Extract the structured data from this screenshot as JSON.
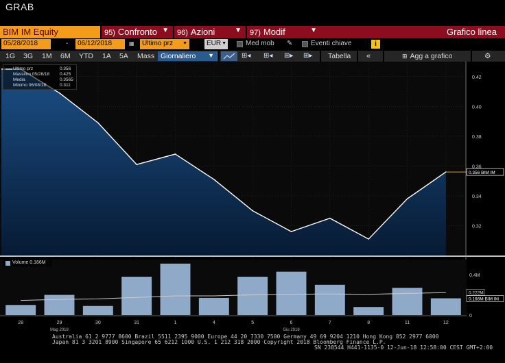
{
  "title": "GRAB",
  "row1": {
    "security": "BIM IM Equity",
    "menus": [
      {
        "num": "95)",
        "label": "Confronto"
      },
      {
        "num": "96)",
        "label": "Azioni"
      },
      {
        "num": "97)",
        "label": "Modif"
      }
    ],
    "chart_type": "Grafico linea"
  },
  "row2": {
    "start_date": "05/28/2018",
    "dash": "-",
    "end_date": "06/12/2018",
    "field": "Ultimo prz",
    "currency": "EUR",
    "moving_avg": "Med mob",
    "key_events": "Eventi chiave",
    "info": "i"
  },
  "row3": {
    "ranges": [
      "1G",
      "3G",
      "1M",
      "6M",
      "YTD",
      "1A",
      "5A",
      "Mass"
    ],
    "frequency": "Giornaliero",
    "table": "Tabella",
    "add_to_chart": "Agg a grafico"
  },
  "legend": {
    "rows": [
      {
        "label": "Ultimo prz",
        "value": "0.356"
      },
      {
        "label": "Massimo 05/28/18",
        "value": "0.425"
      },
      {
        "label": "Media",
        "value": "0.3565"
      },
      {
        "label": "Minimo 06/08/18",
        "value": "0.311"
      }
    ],
    "volume": "Volume 0.166M"
  },
  "chart_data": [
    {
      "type": "area",
      "x": [
        "28",
        "29",
        "30",
        "31",
        "1",
        "4",
        "5",
        "6",
        "7",
        "8",
        "11",
        "12"
      ],
      "series": [
        {
          "name": "Ultimo prz",
          "values": [
            0.425,
            0.409,
            0.389,
            0.361,
            0.368,
            0.351,
            0.33,
            0.316,
            0.325,
            0.311,
            0.338,
            0.356
          ]
        }
      ],
      "ylim": [
        0.3,
        0.43
      ],
      "yticks": [
        0.32,
        0.34,
        0.36,
        0.38,
        0.4,
        0.42
      ],
      "last_value_label": "0.356 BIM IM",
      "month_labels": [
        {
          "at": "29",
          "label": "Mag 2018"
        },
        {
          "at": "6",
          "label": "Giu 2018"
        }
      ],
      "colors": {
        "line": "#ffffff",
        "fill_top": "#1b4f86",
        "fill_bottom": "#071a33",
        "last": "#f39c1c"
      }
    },
    {
      "type": "bar",
      "categories": [
        "28",
        "29",
        "30",
        "31",
        "1",
        "4",
        "5",
        "6",
        "7",
        "8",
        "11",
        "12"
      ],
      "series": [
        {
          "name": "Volume",
          "values": [
            0.1,
            0.2,
            0.09,
            0.38,
            0.51,
            0.17,
            0.38,
            0.43,
            0.3,
            0.08,
            0.27,
            0.166
          ]
        },
        {
          "values": [
            0.145,
            0.155,
            0.16,
            0.175,
            0.19,
            0.19,
            0.2,
            0.205,
            0.21,
            0.205,
            0.215,
            0.222
          ]
        }
      ],
      "ylim": [
        0,
        0.55
      ],
      "yticks": [
        0,
        0.2,
        0.4
      ],
      "ytick_labels": [
        "0",
        "0.2M",
        "0.4M"
      ],
      "labels": {
        "average": "0.222M",
        "last": "0.166M BIM IM"
      },
      "colors": {
        "bar": "#8fa9c9",
        "avg": "#cccccc"
      }
    }
  ],
  "footer": [
    "Australia 61 2 9777 8600 Brazil 5511 2395 9000 Europe 44 20 7330 7500 Germany 49 69 9204 1210 Hong Kong 852 2977 6000",
    "Japan 81 3 3201 8900         Singapore 65 6212 1000         U.S. 1 212 318 2000                  Copyright 2018 Bloomberg Finance L.P.",
    "SN 238544 H441-1135-0 12-Jun-18 12:58:00 CEST GMT+2:00"
  ]
}
